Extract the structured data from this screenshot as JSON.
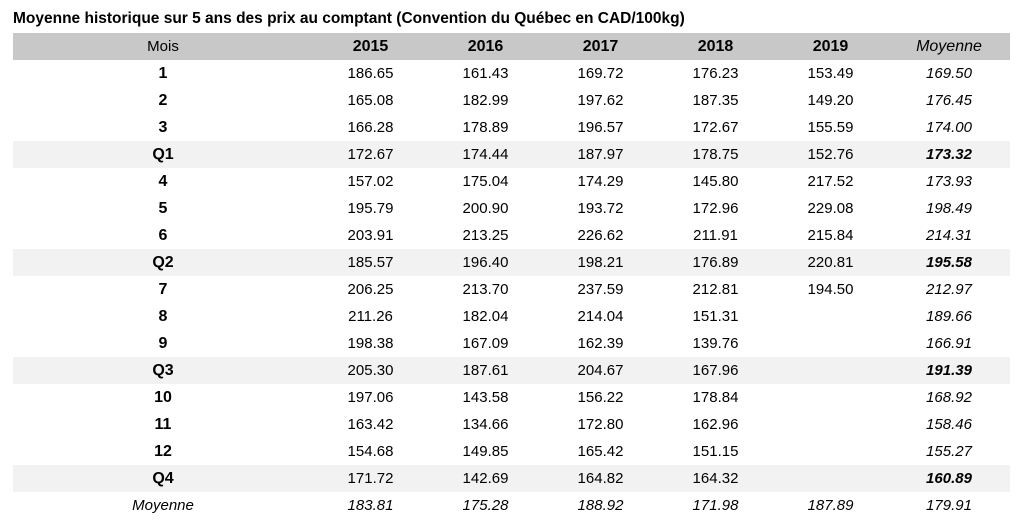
{
  "title": "Moyenne historique sur 5 ans des prix au comptant (Convention du Québec en CAD/100kg)",
  "headers": [
    "Mois",
    "2015",
    "2016",
    "2017",
    "2018",
    "2019",
    "Moyenne"
  ],
  "rows": [
    {
      "label": "1",
      "values": [
        "186.65",
        "161.43",
        "169.72",
        "176.23",
        "153.49"
      ],
      "avg": "169.50",
      "type": "month"
    },
    {
      "label": "2",
      "values": [
        "165.08",
        "182.99",
        "197.62",
        "187.35",
        "149.20"
      ],
      "avg": "176.45",
      "type": "month"
    },
    {
      "label": "3",
      "values": [
        "166.28",
        "178.89",
        "196.57",
        "172.67",
        "155.59"
      ],
      "avg": "174.00",
      "type": "month"
    },
    {
      "label": "Q1",
      "values": [
        "172.67",
        "174.44",
        "187.97",
        "178.75",
        "152.76"
      ],
      "avg": "173.32",
      "type": "quarter"
    },
    {
      "label": "4",
      "values": [
        "157.02",
        "175.04",
        "174.29",
        "145.80",
        "217.52"
      ],
      "avg": "173.93",
      "type": "month"
    },
    {
      "label": "5",
      "values": [
        "195.79",
        "200.90",
        "193.72",
        "172.96",
        "229.08"
      ],
      "avg": "198.49",
      "type": "month"
    },
    {
      "label": "6",
      "values": [
        "203.91",
        "213.25",
        "226.62",
        "211.91",
        "215.84"
      ],
      "avg": "214.31",
      "type": "month"
    },
    {
      "label": "Q2",
      "values": [
        "185.57",
        "196.40",
        "198.21",
        "176.89",
        "220.81"
      ],
      "avg": "195.58",
      "type": "quarter"
    },
    {
      "label": "7",
      "values": [
        "206.25",
        "213.70",
        "237.59",
        "212.81",
        "194.50"
      ],
      "avg": "212.97",
      "type": "month"
    },
    {
      "label": "8",
      "values": [
        "211.26",
        "182.04",
        "214.04",
        "151.31",
        ""
      ],
      "avg": "189.66",
      "type": "month"
    },
    {
      "label": "9",
      "values": [
        "198.38",
        "167.09",
        "162.39",
        "139.76",
        ""
      ],
      "avg": "166.91",
      "type": "month"
    },
    {
      "label": "Q3",
      "values": [
        "205.30",
        "187.61",
        "204.67",
        "167.96",
        ""
      ],
      "avg": "191.39",
      "type": "quarter"
    },
    {
      "label": "10",
      "values": [
        "197.06",
        "143.58",
        "156.22",
        "178.84",
        ""
      ],
      "avg": "168.92",
      "type": "month"
    },
    {
      "label": "11",
      "values": [
        "163.42",
        "134.66",
        "172.80",
        "162.96",
        ""
      ],
      "avg": "158.46",
      "type": "month"
    },
    {
      "label": "12",
      "values": [
        "154.68",
        "149.85",
        "165.42",
        "151.15",
        ""
      ],
      "avg": "155.27",
      "type": "month"
    },
    {
      "label": "Q4",
      "values": [
        "171.72",
        "142.69",
        "164.82",
        "164.32",
        ""
      ],
      "avg": "160.89",
      "type": "quarter"
    },
    {
      "label": "Moyenne",
      "values": [
        "183.81",
        "175.28",
        "188.92",
        "171.98",
        "187.89"
      ],
      "avg": "179.91",
      "type": "total"
    }
  ],
  "colors": {
    "header_bg": "#c8c8c8",
    "quarter_bg": "#f2f2f2"
  }
}
